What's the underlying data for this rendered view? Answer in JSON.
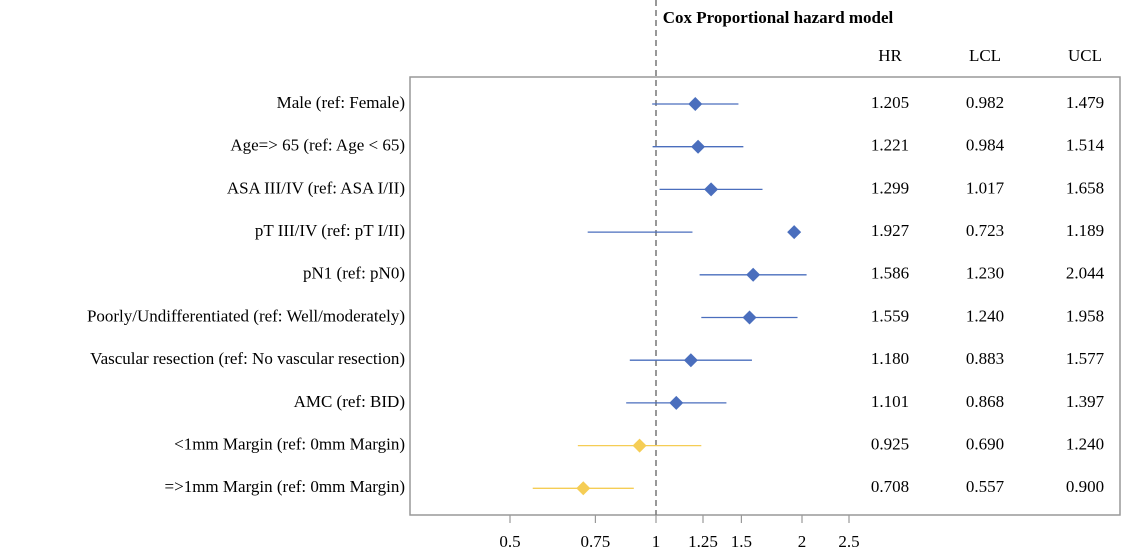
{
  "chart_data": {
    "type": "forest",
    "title": "Cox Proportional hazard model",
    "columns": [
      "HR",
      "LCL",
      "UCL"
    ],
    "categories": [
      "Male (ref: Female)",
      "Age=> 65 (ref: Age < 65)",
      "ASA III/IV (ref: ASA I/II)",
      "pT III/IV (ref: pT I/II)",
      "pN1 (ref: pN0)",
      "Poorly/Undifferentiated (ref: Well/moderately)",
      "Vascular resection (ref: No vascular resection)",
      "AMC (ref: BID)",
      "<1mm Margin (ref: 0mm Margin)",
      "=>1mm Margin (ref: 0mm Margin)"
    ],
    "hr": [
      1.205,
      1.221,
      1.299,
      1.927,
      1.586,
      1.559,
      1.18,
      1.101,
      0.925,
      0.708
    ],
    "hr_labels": [
      "1.205",
      "1.221",
      "1.299",
      "1.927",
      "1.586",
      "1.559",
      "1.180",
      "1.101",
      "0.925",
      "0.708"
    ],
    "lcl": [
      0.982,
      0.984,
      1.017,
      0.723,
      1.23,
      1.24,
      0.883,
      0.868,
      0.69,
      0.557
    ],
    "lcl_labels": [
      "0.982",
      "0.984",
      "1.017",
      "0.723",
      "1.230",
      "1.240",
      "0.883",
      "0.868",
      "0.690",
      "0.557"
    ],
    "ucl": [
      1.479,
      1.514,
      1.658,
      1.189,
      2.044,
      1.958,
      1.577,
      1.397,
      1.24,
      0.9
    ],
    "ucl_labels": [
      "1.479",
      "1.514",
      "1.658",
      "1.189",
      "2.044",
      "1.958",
      "1.577",
      "1.397",
      "1.240",
      "0.900"
    ],
    "colors": [
      "#4a6ebd",
      "#4a6ebd",
      "#4a6ebd",
      "#4a6ebd",
      "#4a6ebd",
      "#4a6ebd",
      "#4a6ebd",
      "#4a6ebd",
      "#f5cd55",
      "#f5cd55"
    ],
    "xscale": "log",
    "xticks": [
      0.5,
      0.75,
      1,
      1.25,
      1.5,
      2,
      2.5
    ],
    "reference_line": 1
  }
}
